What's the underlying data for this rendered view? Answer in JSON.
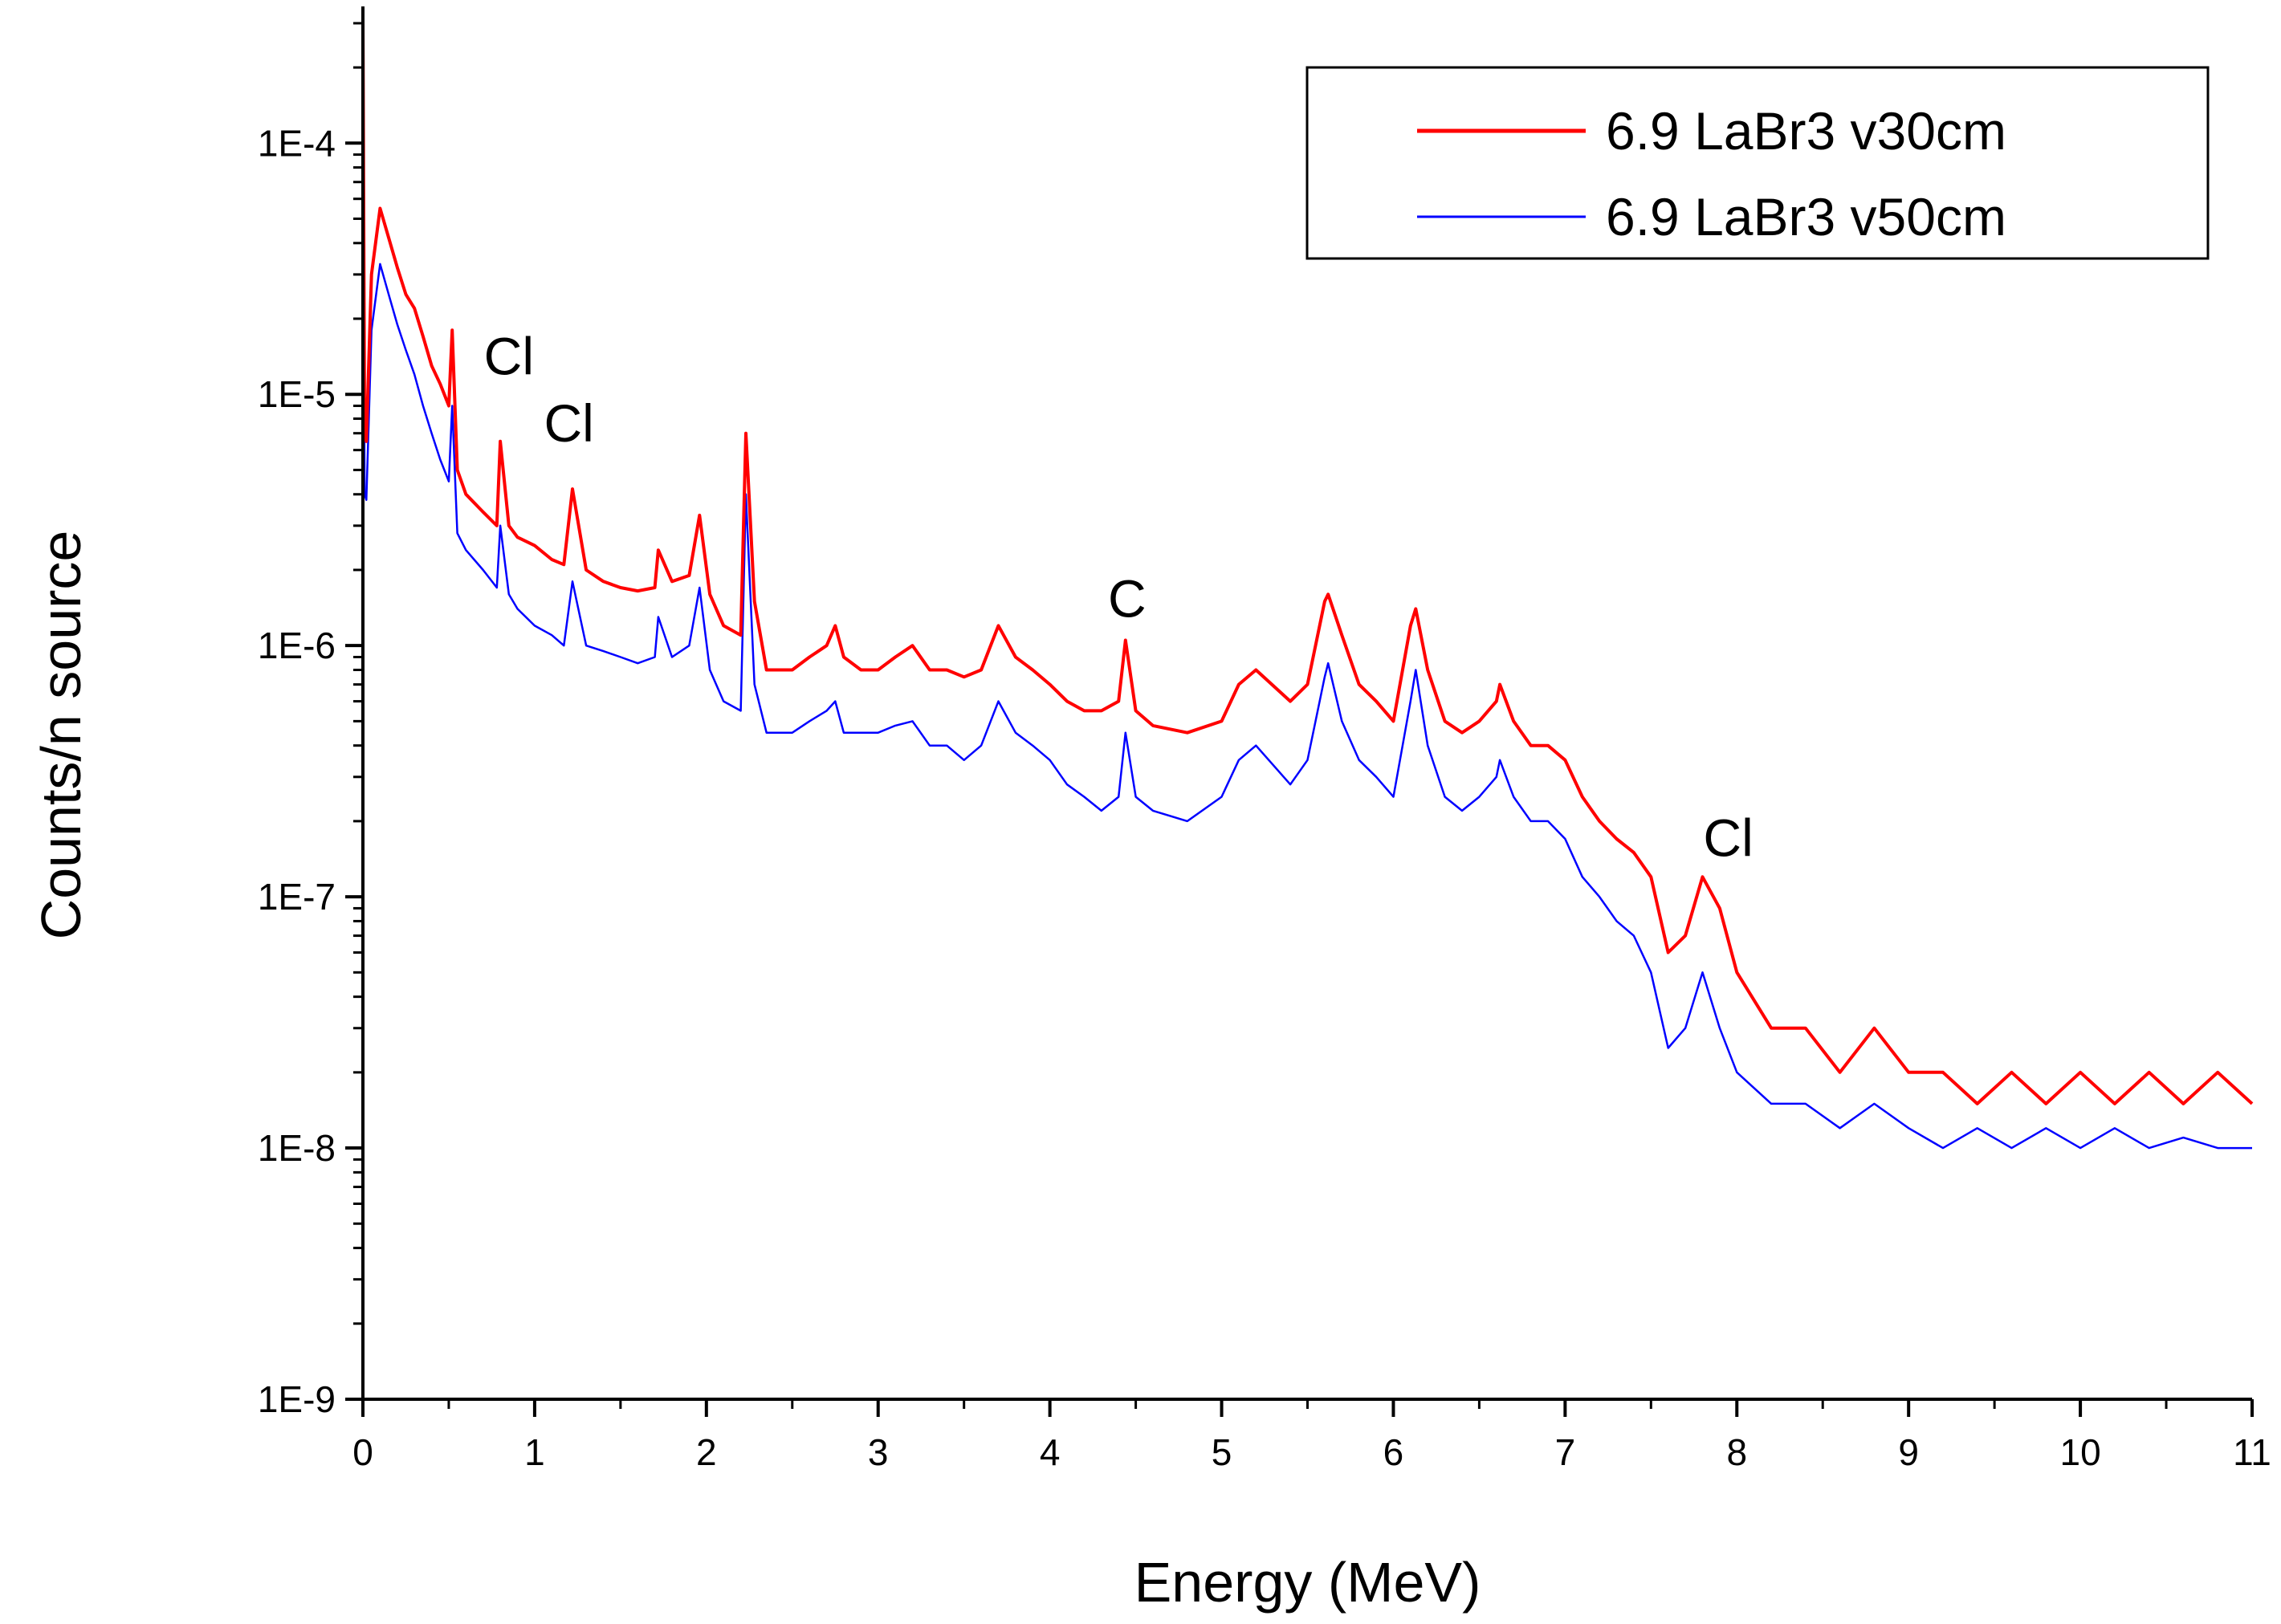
{
  "chart_data": {
    "type": "line",
    "xlabel": "Energy (MeV)",
    "ylabel": "Counts/n source",
    "xlim": [
      0,
      11
    ],
    "ylim": [
      1e-09,
      0.00035
    ],
    "yscale": "log",
    "x_ticks": [
      "0",
      "1",
      "2",
      "3",
      "4",
      "5",
      "6",
      "7",
      "8",
      "9",
      "10",
      "11"
    ],
    "y_ticks": [
      "1E-4",
      "1E-5",
      "1E-6",
      "1E-7",
      "1E-8",
      "1E-9"
    ],
    "grid": false,
    "legend_position": "top-right",
    "series": [
      {
        "name": "6.9 LaBr3 v30cm",
        "color": "#ff0000",
        "x": [
          0.0,
          0.01,
          0.02,
          0.05,
          0.1,
          0.15,
          0.2,
          0.25,
          0.3,
          0.35,
          0.4,
          0.45,
          0.5,
          0.52,
          0.55,
          0.6,
          0.7,
          0.78,
          0.8,
          0.85,
          0.9,
          1.0,
          1.1,
          1.17,
          1.22,
          1.3,
          1.4,
          1.5,
          1.6,
          1.7,
          1.72,
          1.8,
          1.9,
          1.96,
          2.02,
          2.1,
          2.2,
          2.23,
          2.28,
          2.35,
          2.5,
          2.6,
          2.7,
          2.75,
          2.8,
          2.9,
          3.0,
          3.1,
          3.2,
          3.3,
          3.4,
          3.5,
          3.6,
          3.7,
          3.8,
          3.9,
          4.0,
          4.1,
          4.2,
          4.3,
          4.4,
          4.44,
          4.5,
          4.6,
          4.8,
          5.0,
          5.1,
          5.2,
          5.4,
          5.5,
          5.6,
          5.62,
          5.7,
          5.8,
          5.9,
          6.0,
          6.1,
          6.13,
          6.2,
          6.3,
          6.4,
          6.5,
          6.6,
          6.62,
          6.7,
          6.8,
          6.9,
          7.0,
          7.1,
          7.2,
          7.3,
          7.4,
          7.5,
          7.6,
          7.7,
          7.8,
          7.9,
          8.0,
          8.2,
          8.4,
          8.6,
          8.8,
          9.0,
          9.2,
          9.4,
          9.6,
          9.8,
          10.0,
          10.2,
          10.4,
          10.6,
          10.8,
          11.0
        ],
        "y": [
          0.00032,
          7e-06,
          6.5e-06,
          3e-05,
          5.5e-05,
          4.2e-05,
          3.2e-05,
          2.5e-05,
          2.2e-05,
          1.7e-05,
          1.3e-05,
          1.1e-05,
          9e-06,
          1.8e-05,
          5e-06,
          4e-06,
          3.4e-06,
          3e-06,
          6.5e-06,
          3e-06,
          2.7e-06,
          2.5e-06,
          2.2e-06,
          2.1e-06,
          4.2e-06,
          2e-06,
          1.8e-06,
          1.7e-06,
          1.65e-06,
          1.7e-06,
          2.4e-06,
          1.8e-06,
          1.9e-06,
          3.3e-06,
          1.6e-06,
          1.2e-06,
          1.1e-06,
          7e-06,
          1.5e-06,
          8e-07,
          8e-07,
          9e-07,
          1e-06,
          1.2e-06,
          9e-07,
          8e-07,
          8e-07,
          9e-07,
          1e-06,
          8e-07,
          8e-07,
          7.5e-07,
          8e-07,
          1.2e-06,
          9e-07,
          8e-07,
          7e-07,
          6e-07,
          5.5e-07,
          5.5e-07,
          6e-07,
          1.05e-06,
          5.5e-07,
          4.8e-07,
          4.5e-07,
          5e-07,
          7e-07,
          8e-07,
          6e-07,
          7e-07,
          1.5e-06,
          1.6e-06,
          1.1e-06,
          7e-07,
          6e-07,
          5e-07,
          1.2e-06,
          1.4e-06,
          8e-07,
          5e-07,
          4.5e-07,
          5e-07,
          6e-07,
          7e-07,
          5e-07,
          4e-07,
          4e-07,
          3.5e-07,
          2.5e-07,
          2e-07,
          1.7e-07,
          1.5e-07,
          1.2e-07,
          6e-08,
          7e-08,
          1.2e-07,
          9e-08,
          5e-08,
          3e-08,
          3e-08,
          2e-08,
          3e-08,
          2e-08,
          2e-08,
          1.5e-08,
          2e-08,
          1.5e-08,
          2e-08,
          1.5e-08,
          2e-08,
          1.5e-08,
          2e-08,
          1.5e-08
        ]
      },
      {
        "name": "6.9 LaBr3 v50cm",
        "color": "#0000ff",
        "x": [
          0.0,
          0.01,
          0.02,
          0.05,
          0.1,
          0.15,
          0.2,
          0.25,
          0.3,
          0.35,
          0.4,
          0.45,
          0.5,
          0.52,
          0.55,
          0.6,
          0.7,
          0.78,
          0.8,
          0.85,
          0.9,
          1.0,
          1.1,
          1.17,
          1.22,
          1.3,
          1.4,
          1.5,
          1.6,
          1.7,
          1.72,
          1.8,
          1.9,
          1.96,
          2.02,
          2.1,
          2.2,
          2.23,
          2.28,
          2.35,
          2.5,
          2.6,
          2.7,
          2.75,
          2.8,
          2.9,
          3.0,
          3.1,
          3.2,
          3.3,
          3.4,
          3.5,
          3.6,
          3.7,
          3.8,
          3.9,
          4.0,
          4.1,
          4.2,
          4.3,
          4.4,
          4.44,
          4.5,
          4.6,
          4.8,
          5.0,
          5.1,
          5.2,
          5.4,
          5.5,
          5.6,
          5.62,
          5.7,
          5.8,
          5.9,
          6.0,
          6.1,
          6.13,
          6.2,
          6.3,
          6.4,
          6.5,
          6.6,
          6.62,
          6.7,
          6.8,
          6.9,
          7.0,
          7.1,
          7.2,
          7.3,
          7.4,
          7.5,
          7.6,
          7.7,
          7.8,
          7.9,
          8.0,
          8.2,
          8.4,
          8.6,
          8.8,
          9.0,
          9.2,
          9.4,
          9.6,
          9.8,
          10.0,
          10.2,
          10.4,
          10.6,
          10.8,
          11.0
        ],
        "y": [
          0.00018,
          4e-06,
          3.8e-06,
          1.8e-05,
          3.3e-05,
          2.5e-05,
          1.9e-05,
          1.5e-05,
          1.2e-05,
          9e-06,
          7e-06,
          5.5e-06,
          4.5e-06,
          9e-06,
          2.8e-06,
          2.4e-06,
          2e-06,
          1.7e-06,
          3e-06,
          1.6e-06,
          1.4e-06,
          1.2e-06,
          1.1e-06,
          1e-06,
          1.8e-06,
          1e-06,
          9.5e-07,
          9e-07,
          8.5e-07,
          9e-07,
          1.3e-06,
          9e-07,
          1e-06,
          1.7e-06,
          8e-07,
          6e-07,
          5.5e-07,
          4e-06,
          7e-07,
          4.5e-07,
          4.5e-07,
          5e-07,
          5.5e-07,
          6e-07,
          4.5e-07,
          4.5e-07,
          4.5e-07,
          4.8e-07,
          5e-07,
          4e-07,
          4e-07,
          3.5e-07,
          4e-07,
          6e-07,
          4.5e-07,
          4e-07,
          3.5e-07,
          2.8e-07,
          2.5e-07,
          2.2e-07,
          2.5e-07,
          4.5e-07,
          2.5e-07,
          2.2e-07,
          2e-07,
          2.5e-07,
          3.5e-07,
          4e-07,
          2.8e-07,
          3.5e-07,
          7.5e-07,
          8.5e-07,
          5e-07,
          3.5e-07,
          3e-07,
          2.5e-07,
          6e-07,
          8e-07,
          4e-07,
          2.5e-07,
          2.2e-07,
          2.5e-07,
          3e-07,
          3.5e-07,
          2.5e-07,
          2e-07,
          2e-07,
          1.7e-07,
          1.2e-07,
          1e-07,
          8e-08,
          7e-08,
          5e-08,
          2.5e-08,
          3e-08,
          5e-08,
          3e-08,
          2e-08,
          1.5e-08,
          1.5e-08,
          1.2e-08,
          1.5e-08,
          1.2e-08,
          1e-08,
          1.2e-08,
          1e-08,
          1.2e-08,
          1e-08,
          1.2e-08,
          1e-08,
          1.1e-08,
          1e-08,
          1e-08
        ]
      }
    ],
    "annotations": [
      {
        "text": "Cl",
        "x": 0.85,
        "y": 1.2e-05
      },
      {
        "text": "Cl",
        "x": 1.2,
        "y": 6.5e-06
      },
      {
        "text": "C",
        "x": 4.45,
        "y": 1.3e-06
      },
      {
        "text": "Cl",
        "x": 7.95,
        "y": 1.45e-07
      }
    ]
  }
}
